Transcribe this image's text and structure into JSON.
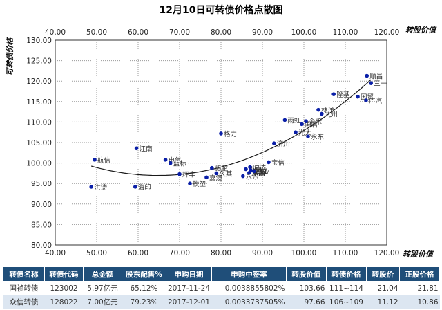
{
  "chart_data": {
    "type": "scatter",
    "title": "12月10日可转债价格点散图",
    "xlabel": "转股价值",
    "ylabel": "可转债价格",
    "xlim": [
      40,
      120
    ],
    "ylim": [
      80,
      130
    ],
    "xticks": [
      "40.00",
      "50.00",
      "60.00",
      "70.00",
      "80.00",
      "90.00",
      "100.00",
      "110.00",
      "120.00"
    ],
    "yticks": [
      "80.00",
      "85.00",
      "90.00",
      "95.00",
      "100.00",
      "105.00",
      "110.00",
      "115.00",
      "120.00",
      "125.00",
      "130.00"
    ],
    "grid": "dotted",
    "points": [
      {
        "label": "洪涛",
        "x": 48.7,
        "y": 94.2
      },
      {
        "label": "航信",
        "x": 49.5,
        "y": 100.8
      },
      {
        "label": "海印",
        "x": 59.3,
        "y": 94.2
      },
      {
        "label": "江南",
        "x": 59.6,
        "y": 103.6
      },
      {
        "label": "电气",
        "x": 66.6,
        "y": 100.8
      },
      {
        "label": "蓝标",
        "x": 67.8,
        "y": 100.0
      },
      {
        "label": "辉丰",
        "x": 70.0,
        "y": 97.3
      },
      {
        "label": "模塑",
        "x": 72.5,
        "y": 95.0
      },
      {
        "label": "嘉澳",
        "x": 76.5,
        "y": 96.5
      },
      {
        "label": "骆驼",
        "x": 77.8,
        "y": 98.8
      },
      {
        "label": "久其",
        "x": 78.9,
        "y": 97.5
      },
      {
        "label": "格力",
        "x": 80.0,
        "y": 107.2
      },
      {
        "label": "永东",
        "x": 85.3,
        "y": 96.8
      },
      {
        "label": "小康",
        "x": 86.0,
        "y": 98.5
      },
      {
        "label": "水晶",
        "x": 86.8,
        "y": 97.6
      },
      {
        "label": "生益",
        "x": 87.2,
        "y": 98.2
      },
      {
        "label": "时达",
        "x": 87.0,
        "y": 99.0
      },
      {
        "label": "久立",
        "x": 88.0,
        "y": 98.0
      },
      {
        "label": "宝信",
        "x": 91.5,
        "y": 100.2
      },
      {
        "label": "济川",
        "x": 92.8,
        "y": 104.8
      },
      {
        "label": "雨虹",
        "x": 95.4,
        "y": 110.5
      },
      {
        "label": "光大",
        "x": 98.0,
        "y": 107.5
      },
      {
        "label": "国君",
        "x": 99.5,
        "y": 109.5
      },
      {
        "label": "金禾",
        "x": 100.5,
        "y": 110.2
      },
      {
        "label": "永东",
        "x": 101.0,
        "y": 106.5
      },
      {
        "label": "林洋",
        "x": 103.5,
        "y": 113.0
      },
      {
        "label": "九州",
        "x": 104.3,
        "y": 112.0
      },
      {
        "label": "隆基",
        "x": 107.2,
        "y": 116.8
      },
      {
        "label": "国贸",
        "x": 113.0,
        "y": 116.2
      },
      {
        "label": "广汽",
        "x": 115.0,
        "y": 115.3
      },
      {
        "label": "顺昌",
        "x": 115.2,
        "y": 121.3
      },
      {
        "label": "三一",
        "x": 116.2,
        "y": 119.5
      }
    ],
    "highlight_labels": [
      "水晶",
      "生益"
    ],
    "trendline": true,
    "point_color": "#0a1fa8",
    "trend_color": "#1a1a1a",
    "highlight_color": "#e0301e"
  },
  "table": {
    "headers": [
      "转债名称",
      "转债代码",
      "总金额",
      "股东配售%",
      "申购日期",
      "申购中签率",
      "转股价值",
      "转债价格",
      "转股价",
      "正股价格"
    ],
    "rows": [
      [
        "国祯转债",
        "123002",
        "5.97亿元",
        "65.12%",
        "2017-11-24",
        "0.0038855802%",
        "103.66",
        "111~114",
        "21.04",
        "21.81"
      ],
      [
        "众信转债",
        "128022",
        "7.00亿元",
        "79.23%",
        "2017-12-01",
        "0.0033737505%",
        "97.66",
        "106~109",
        "11.12",
        "10.86"
      ]
    ]
  }
}
